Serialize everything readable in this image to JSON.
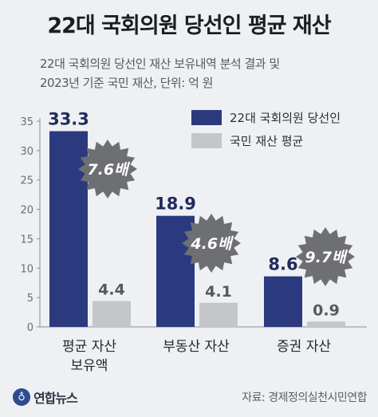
{
  "title": "22대 국회의원 당선인 평균 재산",
  "subtitle_line1": "22대 국회의원 당선인 재산 보유내역 분석 결과 및",
  "subtitle_line2": "2023년 기준 국민 재산, 단위: 억 원",
  "source": "자료: 경제정의실천시민연합",
  "logo": {
    "text": "연합뉴스",
    "icon": "yonhap-logo-icon"
  },
  "colors": {
    "background": "#eef0f3",
    "series_lawmakers": "#2b3a7e",
    "series_public": "#c4c6c9",
    "badge": "#6d6f72",
    "badge_text": "#ffffff"
  },
  "chart_data": {
    "type": "bar",
    "title": "22대 국회의원 당선인 평균 재산",
    "categories": [
      "평균 자산 보유액",
      "부동산 자산",
      "증권 자산"
    ],
    "category_lines": [
      [
        "평균 자산",
        "보유액"
      ],
      [
        "부동산 자산"
      ],
      [
        "증권 자산"
      ]
    ],
    "series": [
      {
        "name": "22대 국회의원 당선인",
        "values": [
          33.3,
          18.9,
          8.6
        ]
      },
      {
        "name": "국민 재산 평균",
        "values": [
          4.4,
          4.1,
          0.9
        ]
      }
    ],
    "value_labels": [
      [
        "33.3",
        "18.9",
        "8.6"
      ],
      [
        "4.4",
        "4.1",
        "0.9"
      ]
    ],
    "ratio_badges": [
      "7.6배",
      "4.6배",
      "9.7배"
    ],
    "ylim": [
      0,
      35
    ],
    "yticks": [
      "0",
      "5",
      "10",
      "15",
      "20",
      "25",
      "30",
      "35"
    ],
    "ytick_values": [
      0,
      5,
      10,
      15,
      20,
      25,
      30,
      35
    ],
    "legend": "top-right",
    "grid": false
  }
}
